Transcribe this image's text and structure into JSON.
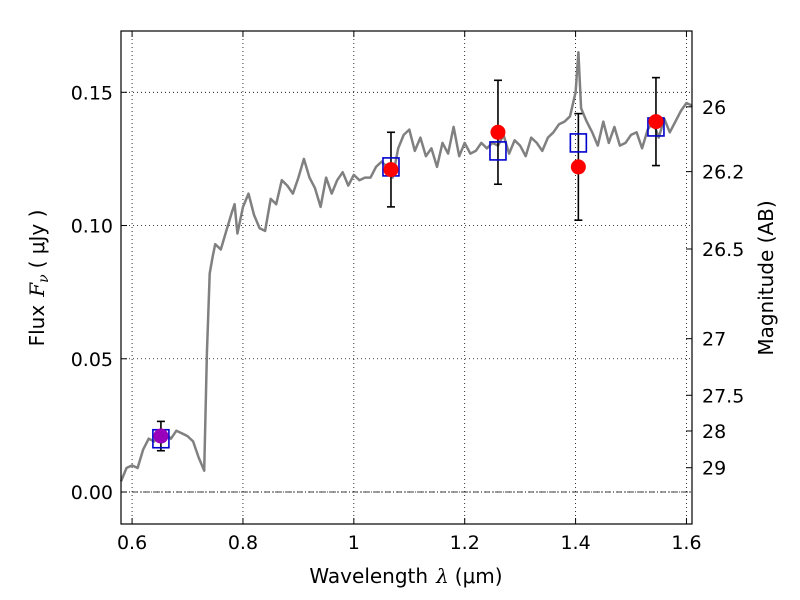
{
  "chart_data": {
    "type": "scatter",
    "xlabel_text": "Wavelength",
    "xlabel_symbol": "λ",
    "xlabel_unit": "(μm)",
    "ylabel_text": "Flux",
    "ylabel_symbol": "F",
    "ylabel_subscript": "ν",
    "ylabel_unit": "( μJy )",
    "y2label": "Magnitude (AB)",
    "xlim": [
      0.58,
      1.61
    ],
    "ylim": [
      -0.012,
      0.173
    ],
    "grid": true,
    "zero_line": true,
    "x_ticks": [
      {
        "v": 0.6,
        "label": "0.6"
      },
      {
        "v": 0.8,
        "label": "0.8"
      },
      {
        "v": 1.0,
        "label": "1"
      },
      {
        "v": 1.2,
        "label": "1.2"
      },
      {
        "v": 1.4,
        "label": "1.4"
      },
      {
        "v": 1.6,
        "label": "1.6"
      }
    ],
    "y_ticks": [
      {
        "v": 0.0,
        "label": "0.00"
      },
      {
        "v": 0.05,
        "label": "0.05"
      },
      {
        "v": 0.1,
        "label": "0.10"
      },
      {
        "v": 0.15,
        "label": "0.15"
      }
    ],
    "mag_ticks": [
      {
        "mag": 26,
        "label": "26"
      },
      {
        "mag": 26.2,
        "label": "26.2"
      },
      {
        "mag": 26.5,
        "label": "26.5"
      },
      {
        "mag": 27,
        "label": "27"
      },
      {
        "mag": 27.5,
        "label": "27.5"
      },
      {
        "mag": 28,
        "label": "28"
      },
      {
        "mag": 29,
        "label": "29"
      }
    ],
    "colors": {
      "sed": "#808080",
      "model_box": "#0000cc",
      "observed": "#ff0000",
      "observed_first": "#9900bb",
      "errorbar": "#000000"
    },
    "sed_spectrum": {
      "x": [
        0.58,
        0.59,
        0.6,
        0.61,
        0.62,
        0.63,
        0.64,
        0.65,
        0.66,
        0.67,
        0.68,
        0.69,
        0.7,
        0.71,
        0.72,
        0.73,
        0.735,
        0.74,
        0.745,
        0.75,
        0.76,
        0.77,
        0.78,
        0.785,
        0.79,
        0.8,
        0.81,
        0.82,
        0.83,
        0.84,
        0.85,
        0.86,
        0.87,
        0.88,
        0.89,
        0.9,
        0.91,
        0.92,
        0.93,
        0.94,
        0.95,
        0.96,
        0.97,
        0.98,
        0.99,
        1.0,
        1.01,
        1.02,
        1.03,
        1.04,
        1.05,
        1.06,
        1.07,
        1.08,
        1.09,
        1.1,
        1.11,
        1.12,
        1.13,
        1.14,
        1.15,
        1.16,
        1.17,
        1.18,
        1.19,
        1.2,
        1.21,
        1.22,
        1.23,
        1.24,
        1.25,
        1.26,
        1.27,
        1.28,
        1.29,
        1.3,
        1.31,
        1.32,
        1.33,
        1.34,
        1.35,
        1.36,
        1.37,
        1.38,
        1.39,
        1.4,
        1.405,
        1.41,
        1.42,
        1.43,
        1.44,
        1.45,
        1.46,
        1.47,
        1.48,
        1.49,
        1.5,
        1.51,
        1.52,
        1.53,
        1.54,
        1.55,
        1.56,
        1.57,
        1.58,
        1.59,
        1.6,
        1.61
      ],
      "y": [
        0.004,
        0.009,
        0.01,
        0.009,
        0.016,
        0.02,
        0.019,
        0.023,
        0.022,
        0.02,
        0.023,
        0.022,
        0.021,
        0.019,
        0.013,
        0.008,
        0.052,
        0.082,
        0.088,
        0.093,
        0.091,
        0.098,
        0.105,
        0.108,
        0.097,
        0.107,
        0.112,
        0.104,
        0.099,
        0.098,
        0.11,
        0.108,
        0.117,
        0.115,
        0.112,
        0.118,
        0.125,
        0.118,
        0.114,
        0.107,
        0.118,
        0.112,
        0.117,
        0.12,
        0.115,
        0.119,
        0.117,
        0.118,
        0.118,
        0.122,
        0.124,
        0.122,
        0.118,
        0.129,
        0.134,
        0.136,
        0.128,
        0.133,
        0.126,
        0.129,
        0.122,
        0.131,
        0.127,
        0.137,
        0.126,
        0.131,
        0.127,
        0.128,
        0.131,
        0.129,
        0.131,
        0.13,
        0.134,
        0.127,
        0.132,
        0.13,
        0.126,
        0.133,
        0.131,
        0.128,
        0.133,
        0.135,
        0.138,
        0.139,
        0.141,
        0.15,
        0.165,
        0.144,
        0.139,
        0.135,
        0.13,
        0.139,
        0.131,
        0.137,
        0.13,
        0.131,
        0.134,
        0.135,
        0.129,
        0.136,
        0.139,
        0.133,
        0.14,
        0.135,
        0.139,
        0.143,
        0.146,
        0.145
      ]
    },
    "points": [
      {
        "x": 0.652,
        "model": 0.02,
        "obs": 0.021,
        "err": 0.0055
      },
      {
        "x": 1.067,
        "model": 0.122,
        "obs": 0.121,
        "err": 0.014
      },
      {
        "x": 1.26,
        "model": 0.128,
        "obs": 0.135,
        "err": 0.0195
      },
      {
        "x": 1.405,
        "model": 0.131,
        "obs": 0.122,
        "err": 0.02
      },
      {
        "x": 1.545,
        "model": 0.137,
        "obs": 0.139,
        "err": 0.0165
      }
    ]
  }
}
